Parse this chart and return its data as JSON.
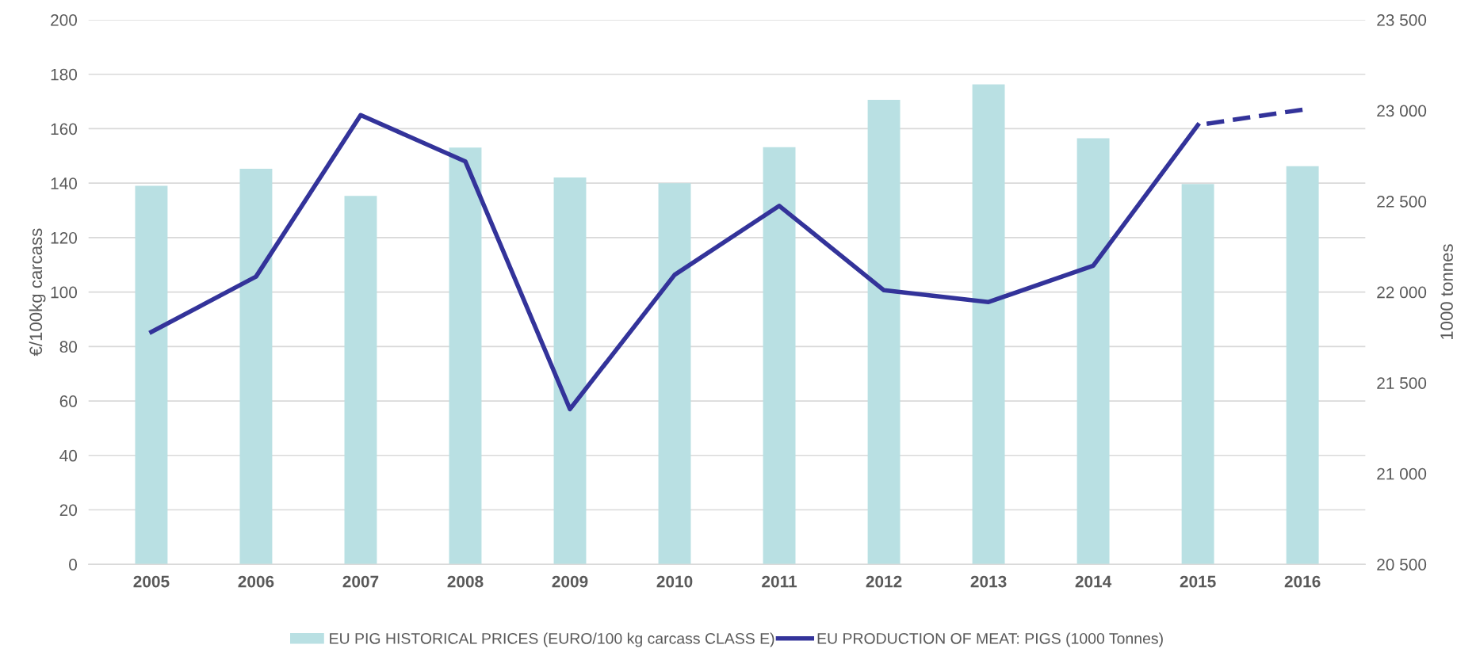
{
  "chart_data": {
    "type": "bar",
    "ylabel": "€/100kg carcass",
    "y2label": "1000 tonnes",
    "categories": [
      "2005",
      "2006",
      "2007",
      "2008",
      "2009",
      "2010",
      "2011",
      "2012",
      "2013",
      "2014",
      "2015",
      "2016"
    ],
    "series": [
      {
        "name": "EU PIG HISTORICAL PRICES (EURO/100 kg carcass CLASS E)",
        "color": "#b9e0e3",
        "values": [
          139,
          145.3,
          135.3,
          153.1,
          142.1,
          140.0,
          153.2,
          170.6,
          176.3,
          156.5,
          139.7,
          146.2
        ]
      },
      {
        "name": "EU PRODUCTION OF MEAT: PIGS (1000 Tonnes)",
        "type": "line",
        "axis": "y2",
        "color": "#33339a",
        "line_style": "solid",
        "values": [
          21780,
          22085,
          22975,
          22720,
          21355,
          22095,
          22475,
          22010,
          21945,
          22145,
          22920,
          null
        ]
      },
      {
        "type": "line",
        "axis": "y2",
        "color": "#33339a",
        "line_style": "dashed",
        "values": [
          null,
          null,
          null,
          null,
          null,
          null,
          null,
          null,
          null,
          null,
          22920,
          23005
        ]
      }
    ],
    "ylim": [
      0,
      200
    ],
    "yticks": [
      0,
      20,
      40,
      60,
      80,
      100,
      120,
      140,
      160,
      180,
      200
    ],
    "y2lim": [
      20500,
      23500
    ],
    "y2ticks": [
      {
        "value": 20500,
        "label": "20 500"
      },
      {
        "value": 21000,
        "label": "21 000"
      },
      {
        "value": 21500,
        "label": "21 500"
      },
      {
        "value": 22000,
        "label": "22 000"
      },
      {
        "value": 22500,
        "label": "22 500"
      },
      {
        "value": 23000,
        "label": "23 000"
      },
      {
        "value": 23500,
        "label": "23 500"
      }
    ],
    "grid": "y",
    "legend": "bottom"
  }
}
